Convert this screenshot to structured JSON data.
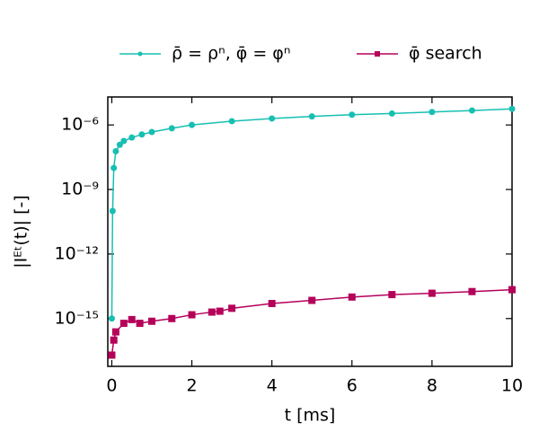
{
  "chart_data": {
    "type": "line",
    "xlabel": "t [ms]",
    "ylabel": "|Iᴱᵗ(t)| [-]",
    "yscale": "log",
    "xlim": [
      -0.1,
      10
    ],
    "xticks": [
      0,
      2,
      4,
      6,
      8,
      10
    ],
    "ylim": [
      6e-18,
      2e-05
    ],
    "yticks": [
      {
        "value": 1e-06,
        "label": "10⁻⁶"
      },
      {
        "value": 1e-09,
        "label": "10⁻⁹"
      },
      {
        "value": 1e-12,
        "label": "10⁻¹²"
      },
      {
        "value": 1e-15,
        "label": "10⁻¹⁵"
      }
    ],
    "legend": "top",
    "series": [
      {
        "name": "ρ̄ = ρⁿ,  φ̄ = φⁿ",
        "color": "#17bfb2",
        "marker": "circle",
        "x": [
          0,
          0.02,
          0.05,
          0.1,
          0.2,
          0.3,
          0.5,
          0.75,
          1,
          1.5,
          2,
          3,
          4,
          5,
          6,
          7,
          8,
          9,
          10
        ],
        "values": [
          1e-15,
          1e-10,
          1e-08,
          6e-08,
          1.2e-07,
          1.8e-07,
          2.6e-07,
          3.6e-07,
          4.7e-07,
          7e-07,
          1e-06,
          1.5e-06,
          2e-06,
          2.5e-06,
          3e-06,
          3.4e-06,
          4e-06,
          4.7e-06,
          5.6e-06
        ]
      },
      {
        "name": "φ̄ search",
        "color": "#b5005a",
        "marker": "square",
        "x": [
          0,
          0.05,
          0.1,
          0.3,
          0.5,
          0.7,
          1,
          1.5,
          2,
          2.5,
          2.7,
          3,
          4,
          5,
          6,
          7,
          8,
          9,
          10
        ],
        "values": [
          2e-17,
          1e-16,
          2.4e-16,
          6e-16,
          9e-16,
          6e-16,
          7.5e-16,
          1e-15,
          1.5e-15,
          2e-15,
          2.2e-15,
          3e-15,
          5e-15,
          7e-15,
          1e-14,
          1.3e-14,
          1.5e-14,
          1.8e-14,
          2.2e-14
        ]
      }
    ]
  }
}
